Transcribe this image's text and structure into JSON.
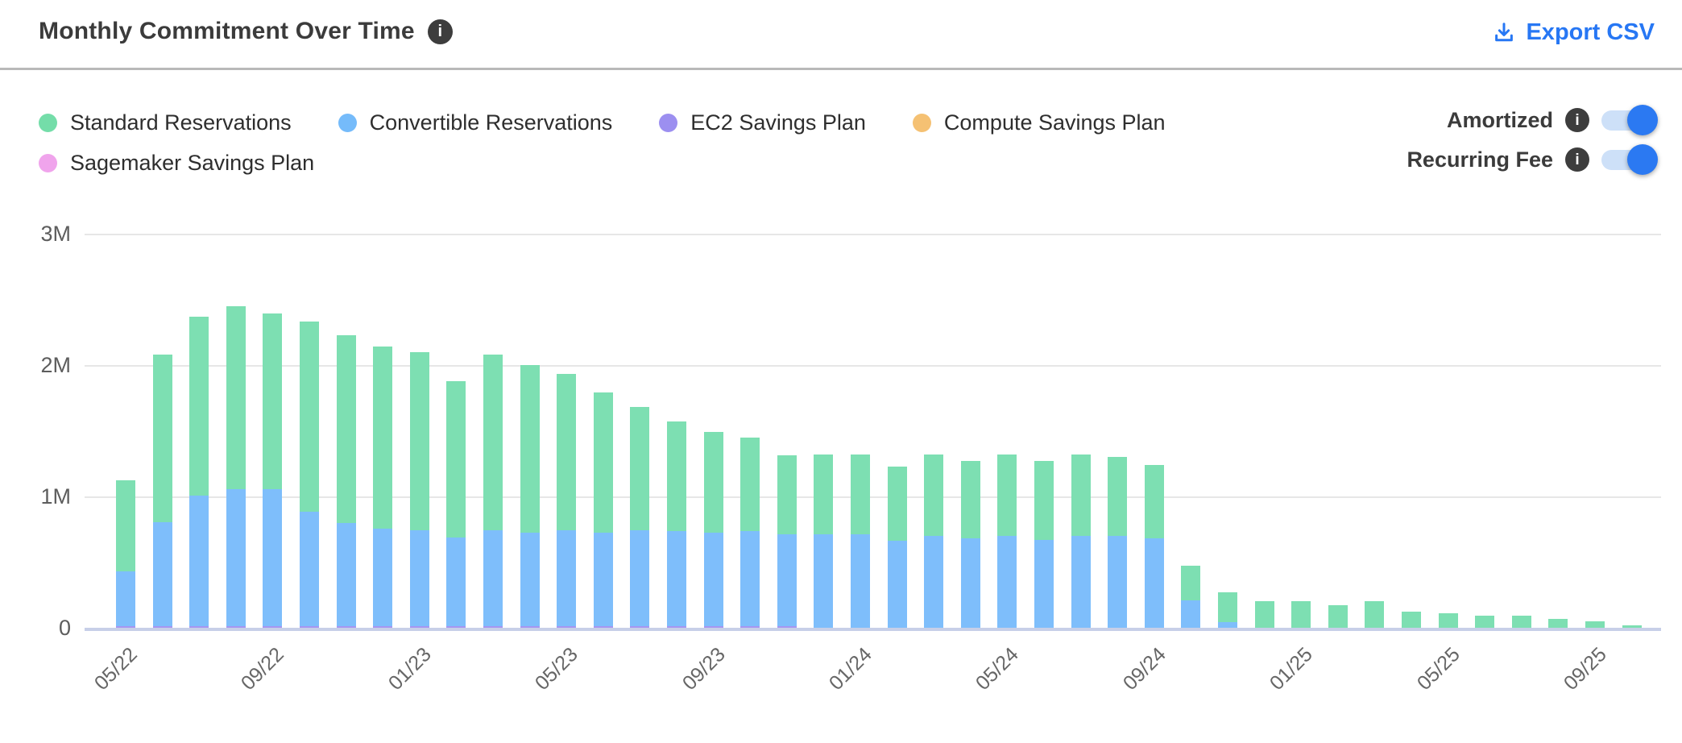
{
  "header": {
    "title": "Monthly Commitment Over Time",
    "export_label": "Export CSV"
  },
  "glyphs": {
    "info": "i"
  },
  "legend": {
    "items": [
      {
        "id": "standard",
        "label": "Standard Reservations",
        "color": "#74DDA9"
      },
      {
        "id": "convertible",
        "label": "Convertible Reservations",
        "color": "#75BBFA"
      },
      {
        "id": "ec2",
        "label": "EC2 Savings Plan",
        "color": "#9C8FF0"
      },
      {
        "id": "compute",
        "label": "Compute Savings Plan",
        "color": "#F5C173"
      },
      {
        "id": "sagemaker",
        "label": "Sagemaker Savings Plan",
        "color": "#F0A4EC"
      }
    ]
  },
  "toggles": [
    {
      "label": "Amortized",
      "state": "on"
    },
    {
      "label": "Recurring Fee",
      "state": "on"
    }
  ],
  "colors": {
    "accent_blue": "#2777f4",
    "toggle_track": "#cde0f8",
    "toggle_knob": "#2b79f2",
    "axis_baseline": "#c7cfe8",
    "gridline": "#e7e7e7"
  },
  "chart_data": {
    "type": "bar",
    "stacked": true,
    "title": "Monthly Commitment Over Time",
    "xlabel": "",
    "ylabel": "",
    "unit": "millions",
    "ylim": [
      0,
      3
    ],
    "grid": true,
    "legend_position": "top-left",
    "y_tick_labels": [
      "0",
      "1M",
      "2M",
      "3M"
    ],
    "x_tick_every": 4,
    "x": [
      "05/22",
      "06/22",
      "07/22",
      "08/22",
      "09/22",
      "10/22",
      "11/22",
      "12/22",
      "01/23",
      "02/23",
      "03/23",
      "04/23",
      "05/23",
      "06/23",
      "07/23",
      "08/23",
      "09/23",
      "10/23",
      "11/23",
      "12/23",
      "01/24",
      "02/24",
      "03/24",
      "04/24",
      "05/24",
      "06/24",
      "07/24",
      "08/24",
      "09/24",
      "10/24",
      "11/24",
      "12/24",
      "01/25",
      "02/25",
      "03/25",
      "04/25",
      "05/25",
      "06/25",
      "07/25",
      "08/25",
      "09/25",
      "10/25"
    ],
    "series": [
      {
        "id": "standard",
        "name": "Standard Reservations",
        "color": "#7DDFB2",
        "values": [
          0.69,
          1.275,
          1.365,
          1.395,
          1.335,
          1.445,
          1.435,
          1.385,
          1.355,
          1.195,
          1.335,
          1.275,
          1.185,
          1.065,
          0.935,
          0.835,
          0.765,
          0.715,
          0.6,
          0.61,
          0.61,
          0.57,
          0.62,
          0.59,
          0.62,
          0.6,
          0.62,
          0.6,
          0.56,
          0.26,
          0.23,
          0.2,
          0.2,
          0.17,
          0.2,
          0.12,
          0.11,
          0.09,
          0.09,
          0.07,
          0.05,
          0.02
        ]
      },
      {
        "id": "convertible",
        "name": "Convertible Reservations",
        "color": "#7EBEFB",
        "values": [
          0.42,
          0.79,
          0.99,
          1.04,
          1.04,
          0.87,
          0.78,
          0.74,
          0.73,
          0.67,
          0.73,
          0.71,
          0.73,
          0.71,
          0.73,
          0.72,
          0.71,
          0.72,
          0.7,
          0.71,
          0.71,
          0.66,
          0.7,
          0.68,
          0.7,
          0.67,
          0.7,
          0.7,
          0.68,
          0.21,
          0.04,
          0,
          0,
          0,
          0,
          0,
          0,
          0,
          0,
          0,
          0,
          0
        ]
      },
      {
        "id": "ec2",
        "name": "EC2 Savings Plan",
        "color": "#A696F1",
        "values": [
          0.01,
          0.015,
          0.015,
          0.015,
          0.015,
          0.015,
          0.015,
          0.015,
          0.015,
          0.015,
          0.015,
          0.015,
          0.015,
          0.015,
          0.015,
          0.015,
          0.015,
          0.015,
          0.01,
          0,
          0,
          0,
          0,
          0,
          0,
          0,
          0,
          0,
          0,
          0,
          0,
          0,
          0,
          0,
          0,
          0,
          0,
          0,
          0,
          0,
          0,
          0
        ]
      },
      {
        "id": "compute",
        "name": "Compute Savings Plan",
        "color": "#F5C173",
        "values": [
          0,
          0,
          0,
          0,
          0,
          0,
          0,
          0,
          0,
          0,
          0,
          0,
          0,
          0,
          0,
          0,
          0,
          0,
          0,
          0,
          0,
          0,
          0,
          0,
          0,
          0,
          0,
          0,
          0,
          0,
          0,
          0,
          0,
          0,
          0,
          0,
          0,
          0,
          0,
          0,
          0,
          0
        ]
      },
      {
        "id": "sagemaker",
        "name": "Sagemaker Savings Plan",
        "color": "#F0A4EC",
        "values": [
          0,
          0,
          0,
          0,
          0,
          0,
          0,
          0,
          0,
          0,
          0,
          0,
          0,
          0,
          0,
          0,
          0,
          0,
          0,
          0,
          0,
          0,
          0,
          0,
          0,
          0,
          0,
          0,
          0,
          0,
          0,
          0,
          0,
          0,
          0,
          0,
          0,
          0,
          0,
          0,
          0,
          0
        ]
      }
    ],
    "stack_order_bottom_to_top": [
      "sagemaker",
      "compute",
      "ec2",
      "convertible",
      "standard"
    ]
  }
}
